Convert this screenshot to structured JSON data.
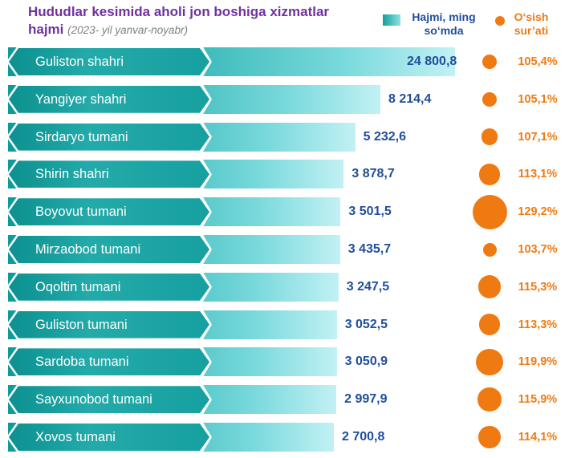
{
  "title": "Hududlar kesimida aholi jon boshiga xizmatlar hajmi",
  "subtitle": "(2023- yil yanvar-noyabr)",
  "legend": {
    "bar_label": "Hajmi, ming so‘mda",
    "dot_label": "O‘sish sur’ati"
  },
  "colors": {
    "bar_start": "#0f9a9a",
    "bar_end": "#c2f1f4",
    "dot": "#f07a12",
    "value_text": "#1f4e9a",
    "title": "#7030a0"
  },
  "chart_data": {
    "type": "bar",
    "orientation": "horizontal",
    "categories": [
      "Guliston shahri",
      "Yangiyer shahri",
      "Sirdaryo tumani",
      "Shirin shahri",
      "Boyovut tumani",
      "Mirzaobod tumani",
      "Oqoltin tumani",
      "Guliston tumani",
      "Sardoba tumani",
      "Sayxunobod tumani",
      "Xovos tumani"
    ],
    "values": [
      24800.8,
      8214.4,
      5232.6,
      3878.7,
      3501.5,
      3435.7,
      3247.5,
      3052.5,
      3050.9,
      2997.9,
      2700.8
    ],
    "value_labels": [
      "24 800,8",
      "8 214,4",
      "5 232,6",
      "3 878,7",
      "3 501,5",
      "3 435,7",
      "3 247,5",
      "3 052,5",
      "3 050,9",
      "2 997,9",
      "2 700,8"
    ],
    "growth": [
      105.4,
      105.1,
      107.1,
      113.1,
      129.2,
      103.7,
      115.3,
      113.3,
      119.9,
      115.9,
      114.1
    ],
    "growth_labels": [
      "105,4%",
      "105,1%",
      "107,1%",
      "113,1%",
      "129,2%",
      "103,7%",
      "115,3%",
      "113,3%",
      "119,9%",
      "115,9%",
      "114,1%"
    ],
    "axis_break": true,
    "grid": false,
    "legend_position": "top-right"
  }
}
